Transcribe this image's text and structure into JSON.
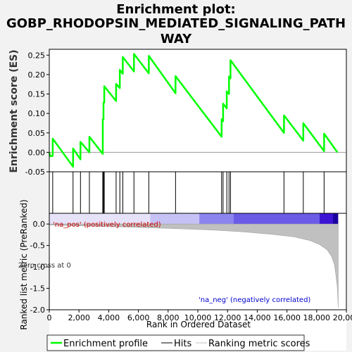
{
  "chart_data": {
    "type": "line",
    "title_lines": [
      "Enrichment plot:",
      "GOBP_RHODOPSIN_MEDIATED_SIGNALING_PATH",
      "WAY"
    ],
    "xlabel": "Rank in Ordered Dataset",
    "top_panel": {
      "ylabel": "Enrichment score (ES)",
      "ylim": [
        -0.05,
        0.265
      ],
      "yticks": [
        -0.05,
        0.0,
        0.05,
        0.1,
        0.15,
        0.2,
        0.25
      ],
      "ytick_labels": [
        "-0.05",
        "0.00",
        "0.05",
        "0.10",
        "0.15",
        "0.20",
        "0.25"
      ],
      "series_name": "Enrichment profile",
      "color": "#00ff00",
      "profile": [
        [
          0,
          0.0
        ],
        [
          60,
          -0.01
        ],
        [
          230,
          -0.009
        ],
        [
          230,
          0.035
        ],
        [
          1600,
          -0.037
        ],
        [
          1600,
          0.01
        ],
        [
          2100,
          -0.018
        ],
        [
          2100,
          0.027
        ],
        [
          2700,
          -0.0
        ],
        [
          2700,
          0.04
        ],
        [
          3600,
          -0.004
        ],
        [
          3600,
          0.085
        ],
        [
          3650,
          0.085
        ],
        [
          3650,
          0.128
        ],
        [
          3700,
          0.128
        ],
        [
          3700,
          0.17
        ],
        [
          4500,
          0.132
        ],
        [
          4500,
          0.176
        ],
        [
          4750,
          0.165
        ],
        [
          4750,
          0.212
        ],
        [
          4950,
          0.202
        ],
        [
          4950,
          0.245
        ],
        [
          5700,
          0.208
        ],
        [
          5700,
          0.253
        ],
        [
          6700,
          0.203
        ],
        [
          6700,
          0.248
        ],
        [
          8500,
          0.152
        ],
        [
          8500,
          0.196
        ],
        [
          11600,
          0.04
        ],
        [
          11600,
          0.085
        ],
        [
          11700,
          0.08
        ],
        [
          11700,
          0.125
        ],
        [
          11950,
          0.113
        ],
        [
          11950,
          0.157
        ],
        [
          12100,
          0.15
        ],
        [
          12100,
          0.195
        ],
        [
          12200,
          0.19
        ],
        [
          12200,
          0.237
        ],
        [
          15800,
          0.05
        ],
        [
          15800,
          0.095
        ],
        [
          17100,
          0.03
        ],
        [
          17100,
          0.075
        ],
        [
          18500,
          0.003
        ],
        [
          18500,
          0.048
        ],
        [
          19400,
          0.0
        ]
      ],
      "hits": [
        230,
        1600,
        2100,
        2700,
        3600,
        3650,
        3700,
        4500,
        4750,
        4950,
        5700,
        6700,
        8500,
        11600,
        11700,
        11950,
        12100,
        12200,
        15800,
        17100,
        18500
      ]
    },
    "bottom_panel": {
      "ylabel": "Ranked list metric (PreRanked)",
      "ylim": [
        -2.0,
        0.25
      ],
      "yticks": [
        0.0,
        -0.5,
        -1.0,
        -1.5,
        -2.0
      ],
      "ytick_labels": [
        "0.0",
        "-0.5",
        "-1.0",
        "-1.5",
        "-2.0"
      ],
      "series_name": "Ranking metric scores",
      "metric": [
        [
          0,
          -0.02
        ],
        [
          2000,
          -0.04
        ],
        [
          5000,
          -0.07
        ],
        [
          8000,
          -0.1
        ],
        [
          11000,
          -0.14
        ],
        [
          13000,
          -0.18
        ],
        [
          15000,
          -0.24
        ],
        [
          16500,
          -0.3
        ],
        [
          17500,
          -0.38
        ],
        [
          18200,
          -0.48
        ],
        [
          18700,
          -0.6
        ],
        [
          19000,
          -0.75
        ],
        [
          19200,
          -0.95
        ],
        [
          19300,
          -1.2
        ],
        [
          19400,
          -1.5
        ],
        [
          19450,
          -1.95
        ]
      ],
      "heat_bands": [
        {
          "from": 0,
          "to": 6800,
          "color": "#e6e3f8"
        },
        {
          "from": 6800,
          "to": 10100,
          "color": "#c7c2f5"
        },
        {
          "from": 10100,
          "to": 12400,
          "color": "#8c85f0"
        },
        {
          "from": 12400,
          "to": 18200,
          "color": "#6a5ce6"
        },
        {
          "from": 18200,
          "to": 19100,
          "color": "#3b14d4"
        },
        {
          "from": 19100,
          "to": 19450,
          "color": "#1a00a0"
        }
      ],
      "annotations": {
        "pos": "'na_pos' (positively correlated)",
        "neg": "'na_neg' (negatively correlated)",
        "zero": "Zero cross at 0"
      }
    },
    "xlim": [
      0,
      20000
    ],
    "xticks": [
      0,
      2000,
      4000,
      6000,
      8000,
      10000,
      12000,
      14000,
      16000,
      18000,
      20000
    ],
    "xtick_labels": [
      "0",
      "2,000",
      "4,000",
      "6,000",
      "8,000",
      "10,000",
      "12,000",
      "14,000",
      "16,000",
      "18,000",
      "20,000"
    ],
    "legend": [
      {
        "label": "Enrichment profile",
        "color": "#00ff00"
      },
      {
        "label": "Hits",
        "color": "#000000"
      },
      {
        "label": "Ranking metric scores",
        "color": "#c0c0c0"
      }
    ]
  }
}
